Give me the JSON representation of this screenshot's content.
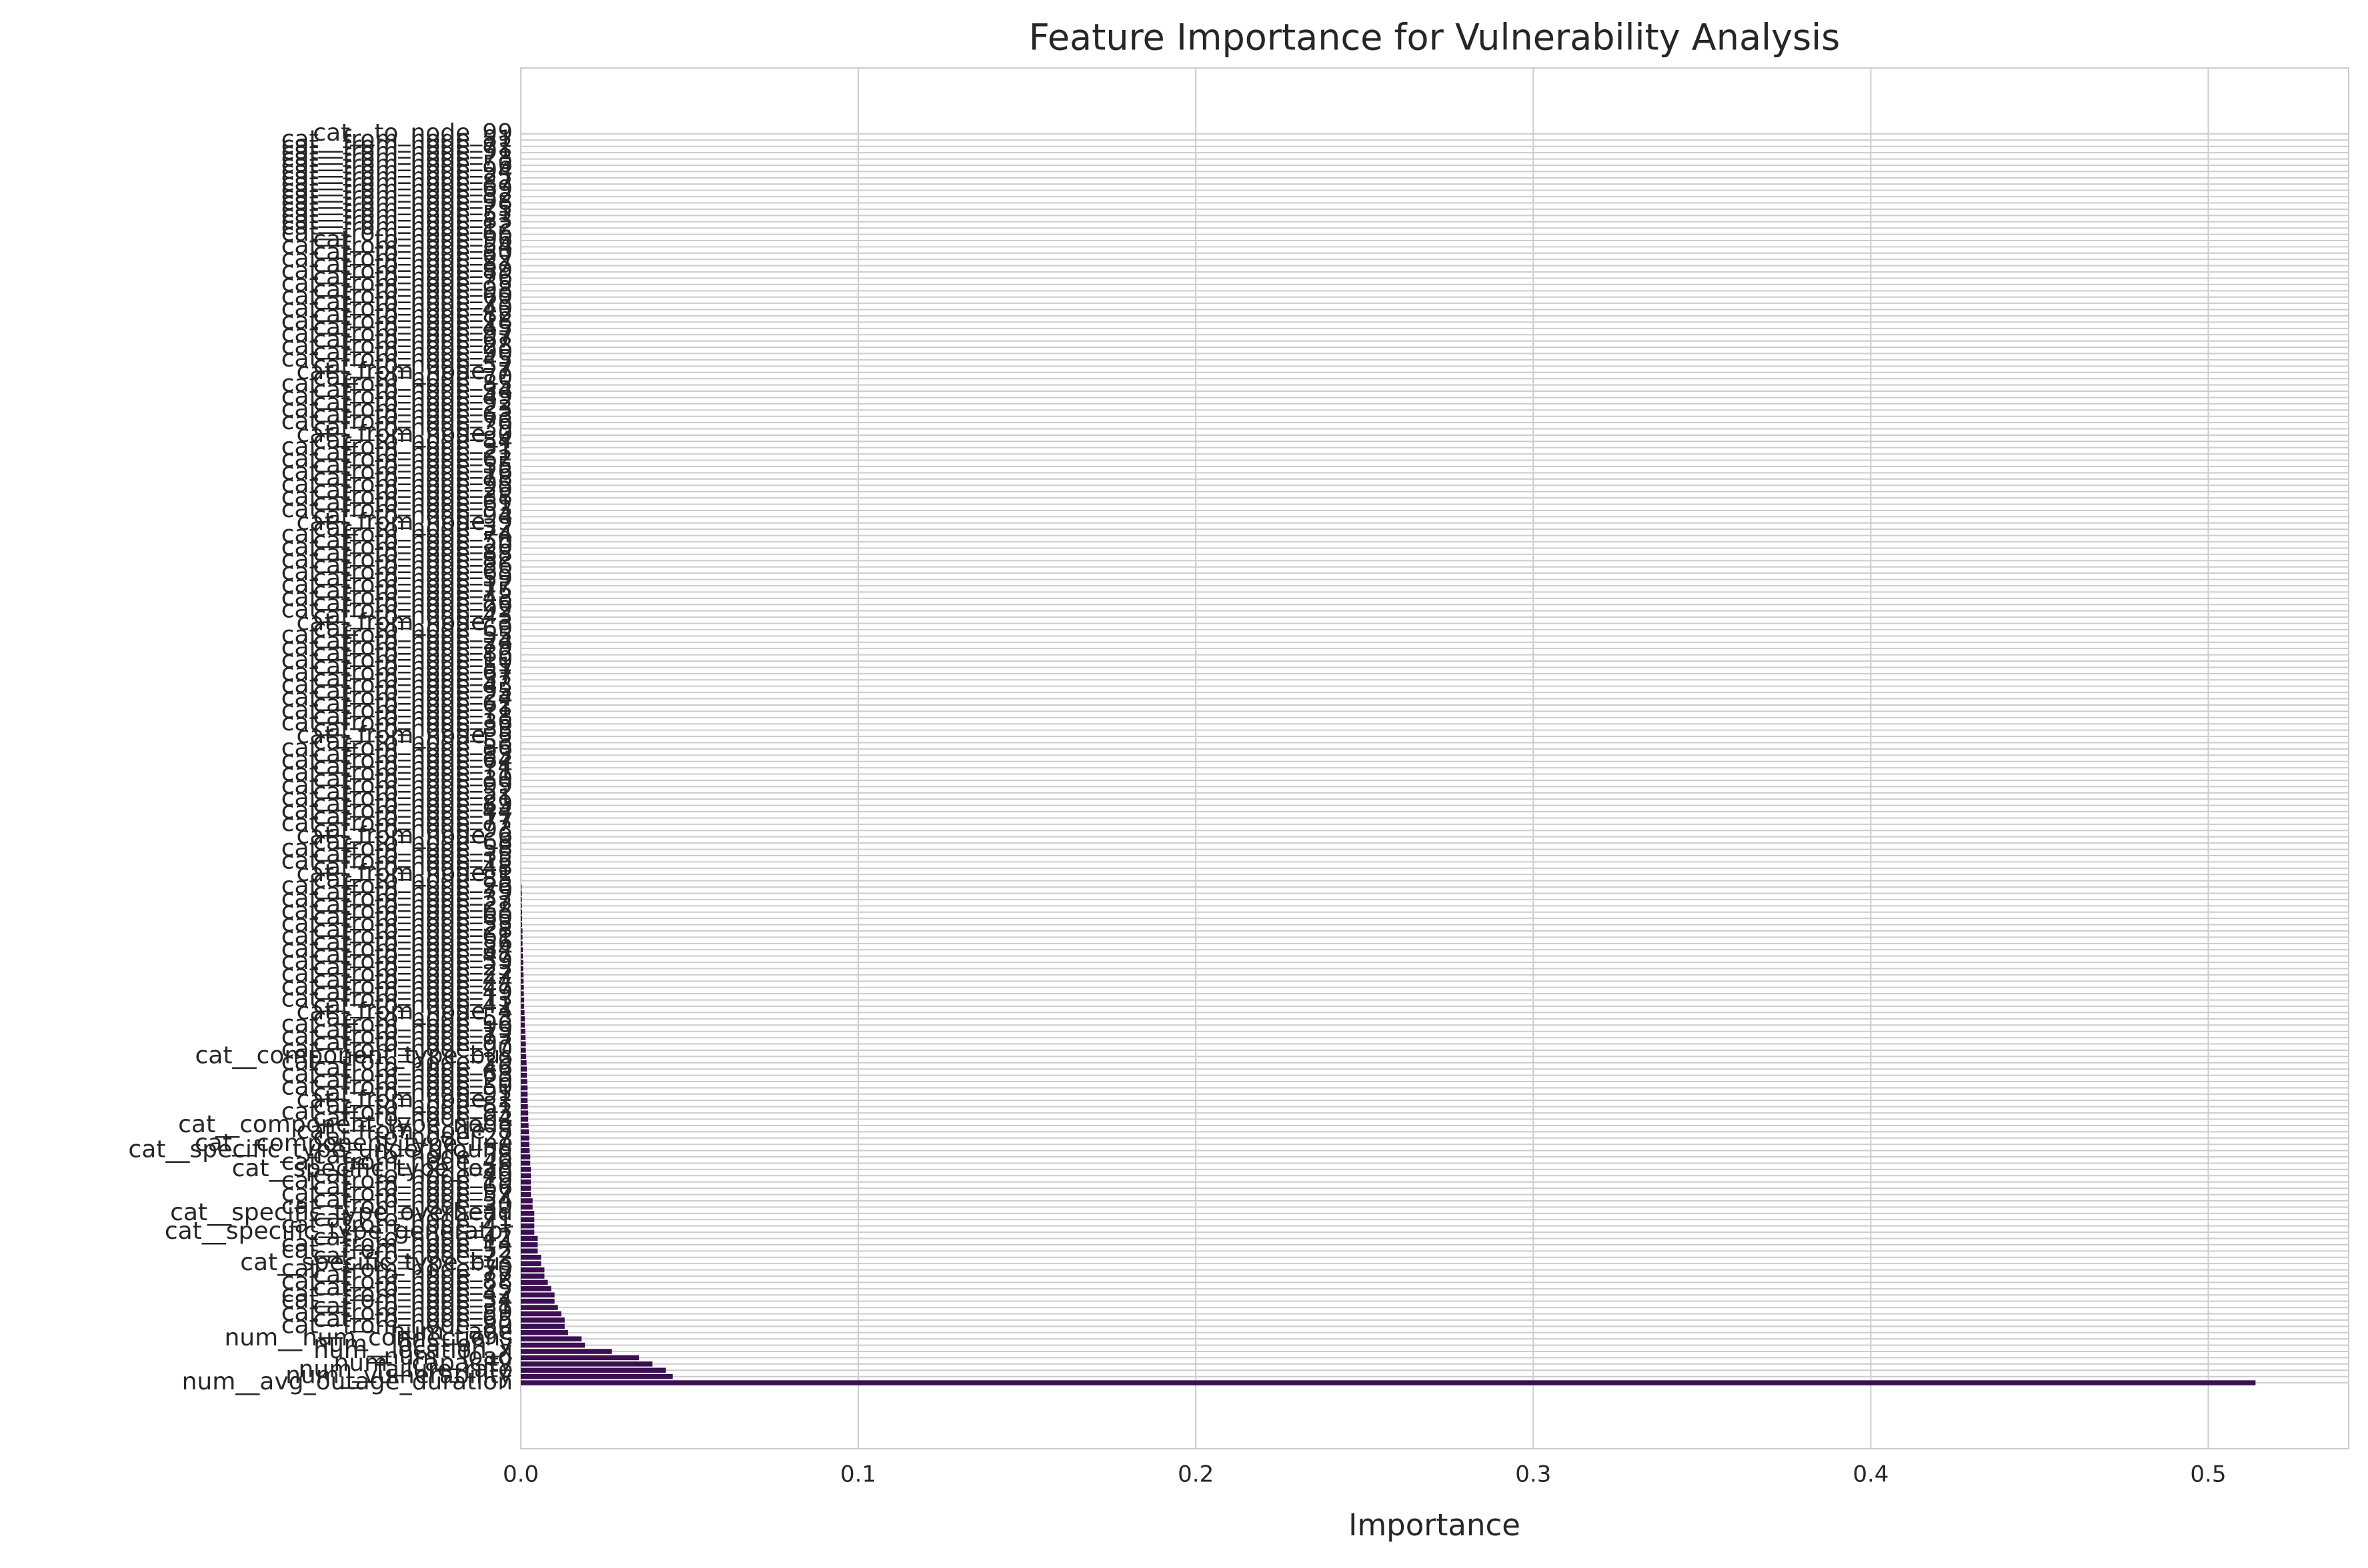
{
  "chart_data": {
    "type": "barh",
    "title": "Feature Importance for Vulnerability Analysis",
    "x_label": "Importance",
    "color": "#3b0f52",
    "grid": true,
    "xlim": [
      0,
      0.5416
    ],
    "xticks": [
      {
        "value": 0,
        "label": "0.0"
      },
      0.1,
      0.2,
      0.3,
      0.4,
      0.5
    ],
    "categories": [
      "num__avg_outage_duration",
      "num__vulnerability",
      "num__failure_rate",
      "num__capacity",
      "num__load",
      "num__location_x",
      "num__location_y",
      "num__num_connections",
      "num__age",
      "cat__from_node_80",
      "cat__to_node_65",
      "cat__from_node_59",
      "cat__to_node_31",
      "cat__from_node_34",
      "cat__from_node_42",
      "cat__to_node_25",
      "cat__from_node_88",
      "cat__to_node_77",
      "cat__from_node_70",
      "cat__specific_type_bus",
      "cat__to_node_72",
      "cat__from_node_52",
      "cat__from_node_14",
      "cat__to_node_42",
      "cat__specific_type_generator",
      "cat__from_node_41",
      "cat__to_node_71",
      "cat__specific_type_overhead",
      "cat__from_node_30",
      "cat__to_node_54",
      "cat__from_node_57",
      "cat__to_node_66",
      "cat__from_node_19",
      "cat__to_node_40",
      "cat__specific_type_load",
      "cat__from_node_46",
      "cat__to_node_38",
      "cat__specific_type_underground",
      "cat__component_type_line",
      "cat__to_node_27",
      "cat__from_node_8",
      "cat__component_type_node",
      "cat__to_node_64",
      "cat__from_node_93",
      "cat__to_node_81",
      "cat__from_node_2",
      "cat__to_node_91",
      "cat__from_node_50",
      "cat__to_node_20",
      "cat__from_node_63",
      "cat__to_node_46",
      "cat__from_node_29",
      "cat__component_type_bus",
      "cat__from_node_90",
      "cat__to_node_97",
      "cat__from_node_73",
      "cat__to_node_19",
      "cat__from_node_96",
      "cat__to_node_53",
      "cat__from_node_4",
      "cat__to_node_41",
      "cat__from_node_13",
      "cat__to_node_49",
      "cat__from_node_47",
      "cat__to_node_44",
      "cat__from_node_27",
      "cat__to_node_23",
      "cat__from_node_39",
      "cat__to_node_47",
      "cat__from_node_84",
      "cat__to_node_56",
      "cat__from_node_61",
      "cat__to_node_28",
      "cat__from_node_33",
      "cat__to_node_60",
      "cat__from_node_68",
      "cat__to_node_22",
      "cat__from_node_37",
      "cat__to_node_79",
      "cat__from_node_26",
      "cat__to_node_85",
      "cat__from_node_1",
      "cat__to_node_48",
      "cat__from_node_15",
      "cat__to_node_35",
      "cat__from_node_58",
      "cat__to_node_68",
      "cat__from_node_6",
      "cat__to_node_93",
      "cat__from_node_77",
      "cat__to_node_17",
      "cat__from_node_44",
      "cat__to_node_89",
      "cat__from_node_21",
      "cat__to_node_52",
      "cat__from_node_99",
      "cat__to_node_30",
      "cat__from_node_11",
      "cat__to_node_74",
      "cat__from_node_64",
      "cat__to_node_33",
      "cat__from_node_86",
      "cat__to_node_58",
      "cat__from_node_5",
      "cat__to_node_83",
      "cat__from_node_36",
      "cat__to_node_18",
      "cat__from_node_71",
      "cat__to_node_62",
      "cat__from_node_24",
      "cat__to_node_95",
      "cat__from_node_43",
      "cat__to_node_37",
      "cat__from_node_67",
      "cat__to_node_51",
      "cat__from_node_10",
      "cat__to_node_86",
      "cat__from_node_79",
      "cat__to_node_24",
      "cat__from_node_55",
      "cat__to_node_69",
      "cat__from_node_3",
      "cat__to_node_43",
      "cat__from_node_92",
      "cat__to_node_26",
      "cat__from_node_48",
      "cat__to_node_75",
      "cat__from_node_17",
      "cat__to_node_59",
      "cat__from_node_65",
      "cat__to_node_36",
      "cat__from_node_82",
      "cat__to_node_88",
      "cat__from_node_20",
      "cat__to_node_50",
      "cat__from_node_74",
      "cat__to_node_32",
      "cat__from_node_9",
      "cat__to_node_94",
      "cat__from_node_53",
      "cat__to_node_61",
      "cat__from_node_38",
      "cat__to_node_29",
      "cat__from_node_95",
      "cat__to_node_78",
      "cat__from_node_16",
      "cat__to_node_55",
      "cat__from_node_62",
      "cat__to_node_21",
      "cat__from_node_31",
      "cat__to_node_84",
      "cat__from_node_0",
      "cat__to_node_39",
      "cat__from_node_76",
      "cat__to_node_63",
      "cat__from_node_23",
      "cat__to_node_92",
      "cat__from_node_49",
      "cat__to_node_34",
      "cat__from_node_85",
      "cat__to_node_70",
      "cat__from_node_7",
      "cat__to_node_57",
      "cat__from_node_45",
      "cat__to_node_90",
      "cat__from_node_28",
      "cat__to_node_67",
      "cat__from_node_97",
      "cat__to_node_45",
      "cat__from_node_18",
      "cat__to_node_82",
      "cat__from_node_40",
      "cat__to_node_73",
      "cat__from_node_60",
      "cat__to_node_98",
      "cat__from_node_35",
      "cat__to_node_76",
      "cat__from_node_89",
      "cat__to_node_87",
      "cat__from_node_22",
      "cat__to_node_80",
      "cat__from_node_54",
      "cat__to_node_96",
      "cat__from_node_66",
      "cat__from_node_12",
      "cat__from_node_83",
      "cat__from_node_51",
      "cat__from_node_75",
      "cat__from_node_98",
      "cat__from_node_32",
      "cat__from_node_69",
      "cat__from_node_87",
      "cat__from_node_25",
      "cat__from_node_94",
      "cat__from_node_56",
      "cat__from_node_78",
      "cat__from_node_91",
      "cat__from_node_72",
      "cat__from_node_81",
      "cat__to_node_99"
    ],
    "values": [
      0.514,
      0.045,
      0.043,
      0.039,
      0.035,
      0.027,
      0.019,
      0.018,
      0.014,
      0.013,
      0.013,
      0.012,
      0.011,
      0.01,
      0.01,
      0.009,
      0.008,
      0.007,
      0.007,
      0.006,
      0.006,
      0.005,
      0.005,
      0.005,
      0.004,
      0.004,
      0.004,
      0.004,
      0.0035,
      0.0035,
      0.003,
      0.003,
      0.003,
      0.003,
      0.003,
      0.0028,
      0.0028,
      0.0026,
      0.0025,
      0.0025,
      0.0024,
      0.0023,
      0.0022,
      0.0022,
      0.0021,
      0.002,
      0.002,
      0.002,
      0.0019,
      0.0018,
      0.0018,
      0.0017,
      0.0016,
      0.0015,
      0.0015,
      0.0014,
      0.0013,
      0.0012,
      0.0012,
      0.0011,
      0.001,
      0.001,
      0.0009,
      0.0009,
      0.0008,
      0.0008,
      0.0007,
      0.0007,
      0.0006,
      0.0006,
      0.0005,
      0.0005,
      0.0005,
      0.0004,
      0.0004,
      0.0004,
      0.0003,
      0.0003,
      0.0003,
      0.0002,
      0,
      0,
      0,
      0,
      0,
      0,
      0,
      0,
      0,
      0,
      0,
      0,
      0,
      0,
      0,
      0,
      0,
      0,
      0,
      0,
      0,
      0,
      0,
      0,
      0,
      0,
      0,
      0,
      0,
      0,
      0,
      0,
      0,
      0,
      0,
      0,
      0,
      0,
      0,
      0,
      0,
      0,
      0,
      0,
      0,
      0,
      0,
      0,
      0,
      0,
      0,
      0,
      0,
      0,
      0,
      0,
      0,
      0,
      0,
      0,
      0,
      0,
      0,
      0,
      0,
      0,
      0,
      0,
      0,
      0,
      0,
      0,
      0,
      0,
      0,
      0,
      0,
      0,
      0,
      0,
      0,
      0,
      0,
      0,
      0,
      0,
      0,
      0,
      0,
      0,
      0,
      0,
      0,
      0,
      0,
      0,
      0,
      0,
      0,
      0,
      0,
      0,
      0,
      0,
      0,
      0,
      0,
      0,
      0,
      0,
      0,
      0,
      0,
      0,
      0,
      0,
      0,
      0,
      0,
      0
    ]
  }
}
